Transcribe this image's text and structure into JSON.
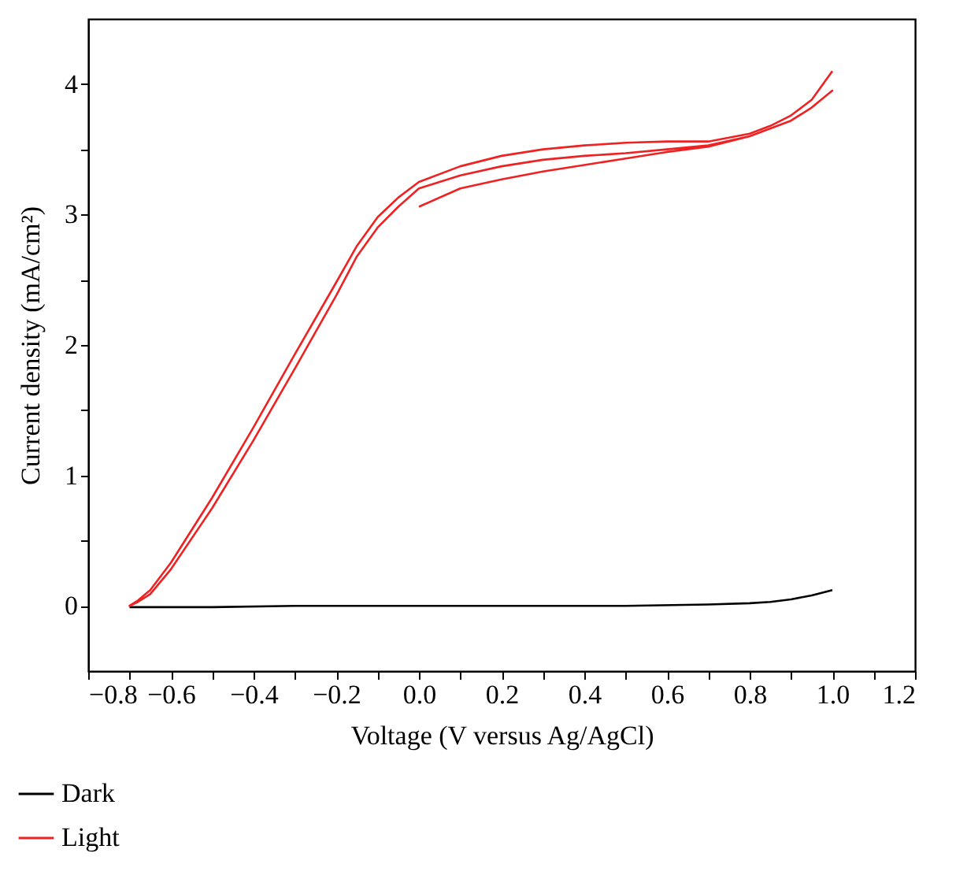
{
  "chart_data": {
    "type": "line",
    "xlabel": "Voltage (V versus Ag/AgCl)",
    "ylabel": "Current density (mA/cm²)",
    "xlim": [
      -0.8,
      1.2
    ],
    "ylim": [
      -0.5,
      4.5
    ],
    "xticks": [
      {
        "value": -0.8,
        "label": "−0.8"
      },
      {
        "value": -0.7,
        "label": null
      },
      {
        "value": -0.6,
        "label": "−0.6"
      },
      {
        "value": -0.5,
        "label": null
      },
      {
        "value": -0.4,
        "label": "−0.4"
      },
      {
        "value": -0.3,
        "label": null
      },
      {
        "value": -0.2,
        "label": "−0.2"
      },
      {
        "value": -0.1,
        "label": null
      },
      {
        "value": 0,
        "label": "0.0"
      },
      {
        "value": 0.1,
        "label": null
      },
      0.2,
      {
        "value": 0.3,
        "label": null
      },
      0.4,
      {
        "value": 0.5,
        "label": null
      },
      0.6,
      {
        "value": 0.7,
        "label": null
      },
      0.8,
      {
        "value": 0.9,
        "label": null
      },
      {
        "value": 1.0,
        "label": "1.0"
      },
      {
        "value": 1.1,
        "label": null
      },
      1.2
    ],
    "yticks": [
      0,
      {
        "value": 0.5,
        "label": null
      },
      1,
      {
        "value": 1.5,
        "label": null
      },
      2,
      {
        "value": 2.5,
        "label": null
      },
      3,
      {
        "value": 3.5,
        "label": null
      },
      4
    ],
    "grid": false,
    "legend": "bottom left",
    "line_style": "solid",
    "marker": "none",
    "series": [
      {
        "name": "Dark",
        "color": "#000000",
        "x": [
          -0.7,
          -0.5,
          -0.3,
          0.0,
          0.3,
          0.5,
          0.7,
          0.8,
          0.85,
          0.9,
          0.95,
          1.0
        ],
        "values": [
          -0.01,
          -0.01,
          0.0,
          0.0,
          0.0,
          0.0,
          0.01,
          0.02,
          0.03,
          0.05,
          0.08,
          0.12
        ]
      },
      {
        "name": "Light",
        "color": "#ee2222",
        "x": [
          0.0,
          0.1,
          0.2,
          0.3,
          0.4,
          0.5,
          0.6,
          0.7,
          0.8,
          0.9,
          0.95,
          1.0,
          0.95,
          0.9,
          0.8,
          0.7,
          0.6,
          0.5,
          0.4,
          0.3,
          0.2,
          0.1,
          0.0,
          -0.05,
          -0.1,
          -0.15,
          -0.2,
          -0.3,
          -0.4,
          -0.5,
          -0.6,
          -0.65,
          -0.68,
          -0.7,
          -0.68,
          -0.65,
          -0.6,
          -0.5,
          -0.4,
          -0.3,
          -0.2,
          -0.15,
          -0.1,
          -0.05,
          0.0,
          0.1,
          0.2,
          0.3,
          0.4,
          0.5,
          0.6,
          0.7,
          0.8,
          0.85,
          0.9,
          0.95,
          1.0
        ],
        "values": [
          3.06,
          3.2,
          3.27,
          3.33,
          3.38,
          3.43,
          3.48,
          3.52,
          3.6,
          3.72,
          3.82,
          3.95,
          3.82,
          3.72,
          3.6,
          3.53,
          3.5,
          3.47,
          3.45,
          3.42,
          3.37,
          3.3,
          3.2,
          3.06,
          2.9,
          2.68,
          2.38,
          1.82,
          1.27,
          0.75,
          0.28,
          0.09,
          0.03,
          0.0,
          0.04,
          0.12,
          0.33,
          0.83,
          1.37,
          1.93,
          2.48,
          2.76,
          2.98,
          3.13,
          3.25,
          3.37,
          3.45,
          3.5,
          3.53,
          3.55,
          3.56,
          3.56,
          3.62,
          3.68,
          3.76,
          3.88,
          4.1
        ]
      }
    ]
  }
}
